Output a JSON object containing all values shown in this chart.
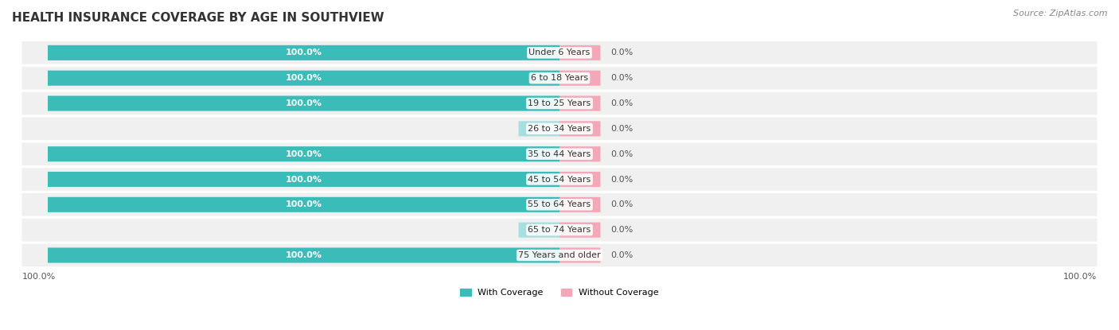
{
  "title": "HEALTH INSURANCE COVERAGE BY AGE IN SOUTHVIEW",
  "source": "Source: ZipAtlas.com",
  "categories": [
    "Under 6 Years",
    "6 to 18 Years",
    "19 to 25 Years",
    "26 to 34 Years",
    "35 to 44 Years",
    "45 to 54 Years",
    "55 to 64 Years",
    "65 to 74 Years",
    "75 Years and older"
  ],
  "with_coverage": [
    100.0,
    100.0,
    100.0,
    0.0,
    100.0,
    100.0,
    100.0,
    0.0,
    100.0
  ],
  "without_coverage": [
    0.0,
    0.0,
    0.0,
    0.0,
    0.0,
    0.0,
    0.0,
    0.0,
    0.0
  ],
  "color_with": "#3bbcb8",
  "color_without": "#f4a7b9",
  "color_with_light": "#a8dedd",
  "bg_bar": "#f0f0f0",
  "bar_bg": "#ebebeb",
  "title_fontsize": 11,
  "source_fontsize": 8,
  "label_fontsize": 8,
  "axis_label_fontsize": 8,
  "bar_height": 0.6,
  "xlim_left": -110,
  "xlim_right": 110,
  "legend_with": "With Coverage",
  "legend_without": "Without Coverage",
  "x_left_label": "100.0%",
  "x_right_label": "100.0%"
}
